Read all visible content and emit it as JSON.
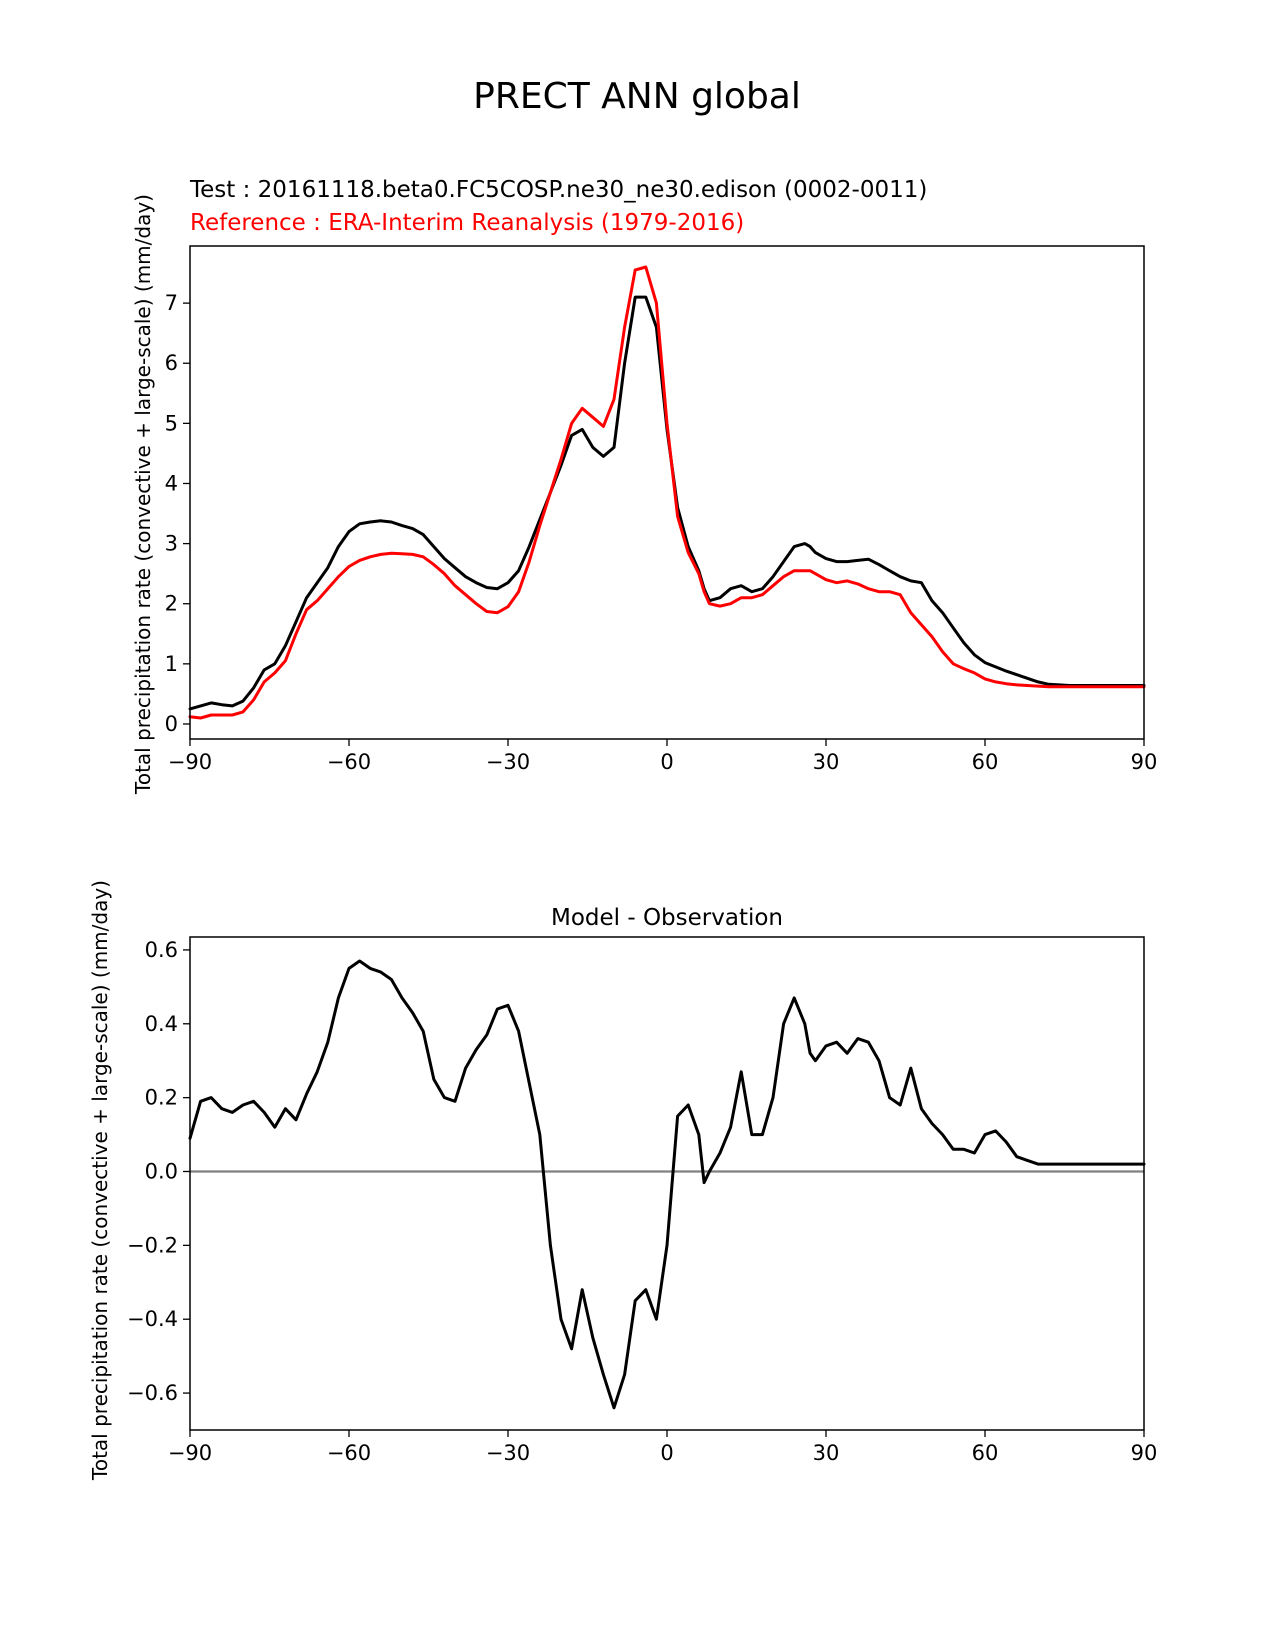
{
  "figure": {
    "title": "PRECT ANN global"
  },
  "chart_data": [
    {
      "type": "line",
      "title": "",
      "legend_labels": {
        "test": "Test : 20161118.beta0.FC5COSP.ne30_ne30.edison (0002-0011)",
        "reference": "Reference : ERA-Interim Reanalysis (1979-2016)"
      },
      "xlabel": "",
      "ylabel": "Total precipitation rate (convective + large-scale) (mm/day)",
      "xlim": [
        -90,
        90
      ],
      "ylim": [
        -0.25,
        7.95
      ],
      "xticks": [
        -90,
        -60,
        -30,
        0,
        30,
        60,
        90
      ],
      "xtick_labels": [
        "−90",
        "−60",
        "−30",
        "0",
        "30",
        "60",
        "90"
      ],
      "yticks": [
        0,
        1,
        2,
        3,
        4,
        5,
        6,
        7
      ],
      "ytick_labels": [
        "0",
        "1",
        "2",
        "3",
        "4",
        "5",
        "6",
        "7"
      ],
      "grid": false,
      "series": [
        {
          "key": "test",
          "color": "#000000",
          "x": [
            -90,
            -88,
            -86,
            -84,
            -82,
            -80,
            -78,
            -76,
            -74,
            -72,
            -70,
            -68,
            -66,
            -64,
            -62,
            -60,
            -58,
            -56,
            -54,
            -52,
            -50,
            -48,
            -46,
            -44,
            -42,
            -40,
            -38,
            -36,
            -34,
            -32,
            -30,
            -28,
            -26,
            -24,
            -22,
            -20,
            -18,
            -16,
            -14,
            -12,
            -10,
            -8,
            -6,
            -4,
            -2,
            0,
            2,
            4,
            6,
            7,
            8,
            10,
            12,
            14,
            16,
            18,
            20,
            22,
            24,
            26,
            27,
            28,
            30,
            32,
            34,
            36,
            38,
            40,
            42,
            44,
            46,
            48,
            50,
            52,
            54,
            56,
            58,
            60,
            62,
            64,
            66,
            68,
            70,
            72,
            74,
            76,
            78,
            80,
            82,
            84,
            86,
            88,
            90
          ],
          "y": [
            0.25,
            0.3,
            0.35,
            0.32,
            0.3,
            0.38,
            0.6,
            0.9,
            1.0,
            1.3,
            1.7,
            2.1,
            2.35,
            2.6,
            2.95,
            3.2,
            3.33,
            3.36,
            3.38,
            3.36,
            3.3,
            3.25,
            3.15,
            2.95,
            2.75,
            2.6,
            2.45,
            2.35,
            2.27,
            2.25,
            2.35,
            2.55,
            2.95,
            3.4,
            3.85,
            4.3,
            4.8,
            4.9,
            4.6,
            4.45,
            4.6,
            6.0,
            7.1,
            7.1,
            6.6,
            4.9,
            3.6,
            2.95,
            2.55,
            2.25,
            2.05,
            2.1,
            2.25,
            2.3,
            2.2,
            2.25,
            2.45,
            2.7,
            2.95,
            3.0,
            2.95,
            2.85,
            2.75,
            2.7,
            2.7,
            2.72,
            2.74,
            2.65,
            2.55,
            2.45,
            2.38,
            2.35,
            2.05,
            1.85,
            1.6,
            1.35,
            1.15,
            1.02,
            0.95,
            0.88,
            0.82,
            0.76,
            0.7,
            0.66,
            0.65,
            0.64,
            0.64,
            0.64,
            0.64,
            0.64,
            0.64,
            0.64,
            0.64
          ]
        },
        {
          "key": "reference",
          "color": "#ff0000",
          "x": [
            -90,
            -88,
            -86,
            -84,
            -82,
            -80,
            -78,
            -76,
            -74,
            -72,
            -70,
            -68,
            -66,
            -64,
            -62,
            -60,
            -58,
            -56,
            -54,
            -52,
            -50,
            -48,
            -46,
            -44,
            -42,
            -40,
            -38,
            -36,
            -34,
            -32,
            -30,
            -28,
            -26,
            -24,
            -22,
            -20,
            -18,
            -16,
            -14,
            -12,
            -10,
            -8,
            -6,
            -4,
            -2,
            0,
            2,
            4,
            6,
            7,
            8,
            10,
            12,
            14,
            16,
            18,
            20,
            22,
            24,
            26,
            27,
            28,
            30,
            32,
            34,
            36,
            38,
            40,
            42,
            44,
            46,
            48,
            50,
            52,
            54,
            56,
            58,
            60,
            62,
            64,
            66,
            68,
            70,
            72,
            74,
            76,
            78,
            80,
            82,
            84,
            86,
            88,
            90
          ],
          "y": [
            0.12,
            0.1,
            0.15,
            0.15,
            0.15,
            0.2,
            0.4,
            0.7,
            0.85,
            1.05,
            1.5,
            1.9,
            2.05,
            2.25,
            2.45,
            2.62,
            2.72,
            2.78,
            2.82,
            2.84,
            2.83,
            2.82,
            2.78,
            2.65,
            2.5,
            2.3,
            2.15,
            2.0,
            1.87,
            1.85,
            1.95,
            2.2,
            2.7,
            3.3,
            3.85,
            4.4,
            5.0,
            5.25,
            5.1,
            4.95,
            5.4,
            6.6,
            7.55,
            7.6,
            7.0,
            5.0,
            3.45,
            2.85,
            2.5,
            2.2,
            2.0,
            1.96,
            2.0,
            2.1,
            2.1,
            2.15,
            2.3,
            2.45,
            2.55,
            2.55,
            2.55,
            2.5,
            2.4,
            2.35,
            2.38,
            2.33,
            2.25,
            2.2,
            2.2,
            2.15,
            1.85,
            1.65,
            1.45,
            1.2,
            1.0,
            0.92,
            0.85,
            0.75,
            0.7,
            0.67,
            0.65,
            0.64,
            0.63,
            0.62,
            0.62,
            0.62,
            0.62,
            0.62,
            0.62,
            0.62,
            0.62,
            0.62,
            0.62
          ]
        }
      ]
    },
    {
      "type": "line",
      "title": "Model - Observation",
      "xlabel": "",
      "ylabel": "Total precipitation rate (convective + large-scale) (mm/day)",
      "xlim": [
        -90,
        90
      ],
      "ylim": [
        -0.7,
        0.635
      ],
      "xticks": [
        -90,
        -60,
        -30,
        0,
        30,
        60,
        90
      ],
      "xtick_labels": [
        "−90",
        "−60",
        "−30",
        "0",
        "30",
        "60",
        "90"
      ],
      "yticks": [
        -0.6,
        -0.4,
        -0.2,
        0.0,
        0.2,
        0.4,
        0.6
      ],
      "ytick_labels": [
        "−0.6",
        "−0.4",
        "−0.2",
        "0.0",
        "0.2",
        "0.4",
        "0.6"
      ],
      "zero_line_color": "#808080",
      "grid": false,
      "series": [
        {
          "key": "diff",
          "color": "#000000",
          "x": [
            -90,
            -88,
            -86,
            -84,
            -82,
            -80,
            -78,
            -76,
            -74,
            -72,
            -70,
            -68,
            -66,
            -64,
            -62,
            -60,
            -58,
            -56,
            -54,
            -52,
            -50,
            -48,
            -46,
            -44,
            -42,
            -40,
            -38,
            -36,
            -34,
            -32,
            -30,
            -28,
            -26,
            -24,
            -22,
            -20,
            -18,
            -16,
            -14,
            -12,
            -10,
            -8,
            -6,
            -4,
            -2,
            0,
            2,
            4,
            6,
            7,
            8,
            10,
            12,
            14,
            16,
            18,
            20,
            22,
            24,
            26,
            27,
            28,
            30,
            32,
            34,
            36,
            38,
            40,
            42,
            44,
            46,
            48,
            50,
            52,
            54,
            56,
            58,
            60,
            62,
            64,
            66,
            68,
            70,
            72,
            74,
            76,
            78,
            80,
            82,
            84,
            86,
            88,
            90
          ],
          "y": [
            0.09,
            0.19,
            0.2,
            0.17,
            0.16,
            0.18,
            0.19,
            0.16,
            0.12,
            0.17,
            0.14,
            0.21,
            0.27,
            0.35,
            0.47,
            0.55,
            0.57,
            0.55,
            0.54,
            0.52,
            0.47,
            0.43,
            0.38,
            0.25,
            0.2,
            0.19,
            0.28,
            0.33,
            0.37,
            0.44,
            0.45,
            0.38,
            0.24,
            0.1,
            -0.2,
            -0.4,
            -0.48,
            -0.32,
            -0.45,
            -0.55,
            -0.64,
            -0.55,
            -0.35,
            -0.32,
            -0.4,
            -0.2,
            0.15,
            0.18,
            0.1,
            -0.03,
            0.0,
            0.05,
            0.12,
            0.27,
            0.1,
            0.1,
            0.2,
            0.4,
            0.47,
            0.4,
            0.32,
            0.3,
            0.34,
            0.35,
            0.32,
            0.36,
            0.35,
            0.3,
            0.2,
            0.18,
            0.28,
            0.17,
            0.13,
            0.1,
            0.06,
            0.06,
            0.05,
            0.1,
            0.11,
            0.08,
            0.04,
            0.03,
            0.02,
            0.02,
            0.02,
            0.02,
            0.02,
            0.02,
            0.02,
            0.02,
            0.02,
            0.02,
            0.02
          ]
        }
      ]
    }
  ]
}
